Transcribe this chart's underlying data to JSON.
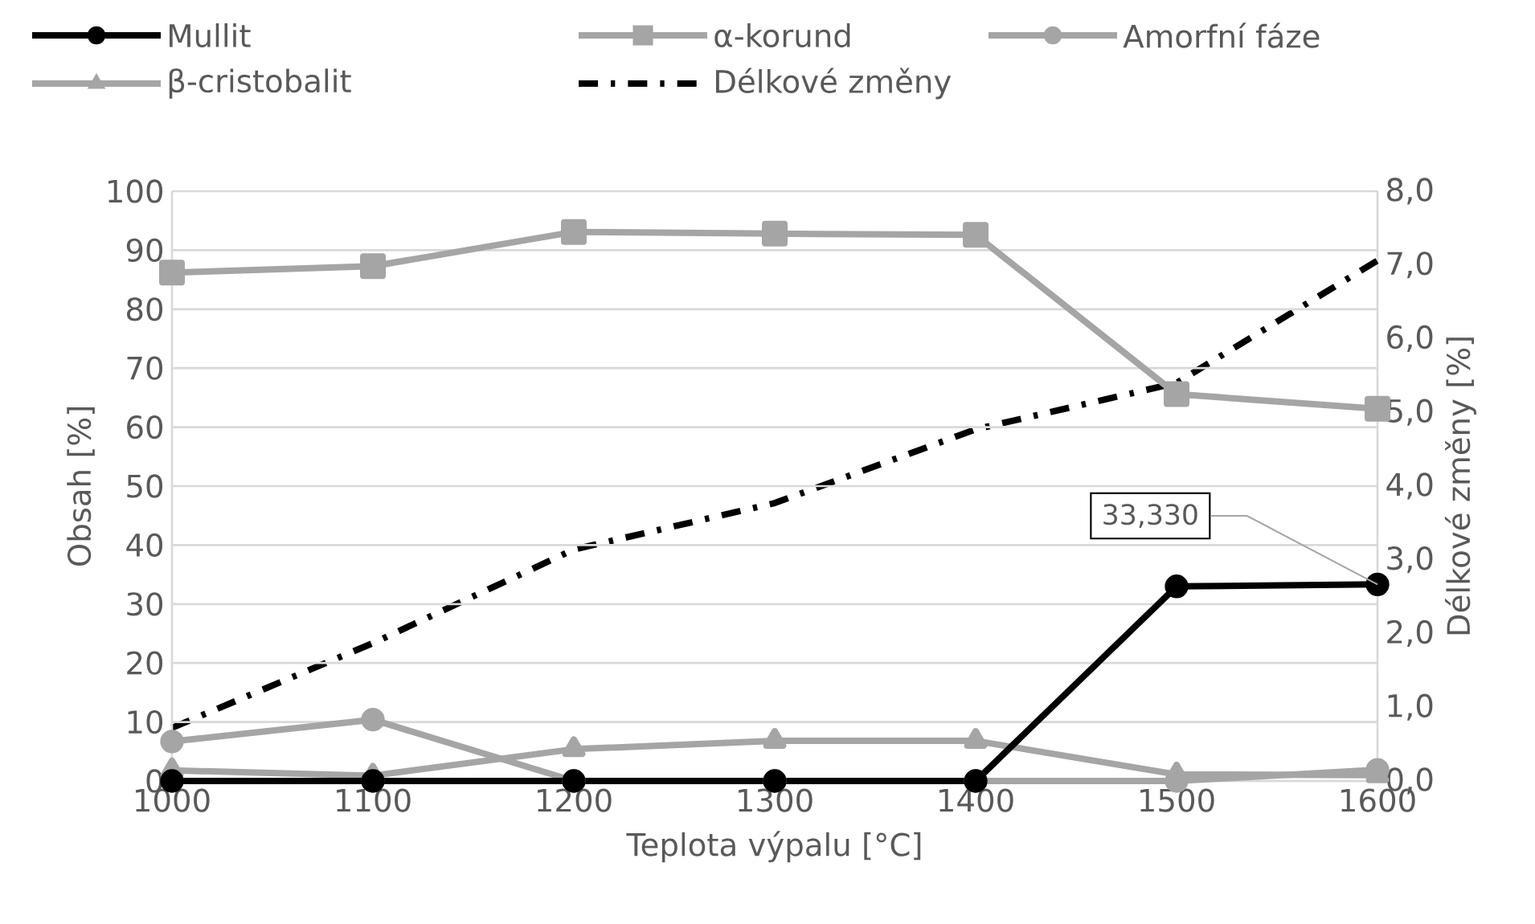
{
  "chart_data": {
    "type": "line",
    "xlabel": "Teplota výpalu [°C]",
    "ylabel": "Obsah [%]",
    "y2label": "Délkové změny [%]",
    "x": [
      1000,
      1100,
      1200,
      1300,
      1400,
      1500,
      1600
    ],
    "series": [
      {
        "name": "Mullit",
        "color": "#000000",
        "marker": "circle",
        "values": [
          0,
          0,
          0,
          0,
          0,
          33,
          33.33
        ]
      },
      {
        "name": "α-korund",
        "color": "#a5a5a5",
        "marker": "square",
        "values": [
          86.2,
          87.3,
          93.1,
          92.8,
          92.6,
          65.6,
          63.1
        ]
      },
      {
        "name": "Amorfní fáze",
        "color": "#a5a5a5",
        "marker": "circle",
        "values": [
          6.7,
          10.4,
          0,
          0,
          0,
          0,
          1.9
        ]
      },
      {
        "name": "β-cristobalit",
        "color": "#a5a5a5",
        "marker": "triangle",
        "values": [
          1.8,
          0.9,
          5.4,
          6.8,
          6.8,
          1.1,
          1.0
        ]
      },
      {
        "name": "Délkové změny",
        "color": "#000000",
        "marker": "none",
        "line_style": "dashdot",
        "axis": "y2",
        "values": [
          0.72,
          1.87,
          3.14,
          3.77,
          4.77,
          5.4,
          7.06
        ]
      }
    ],
    "xlim": [
      1000,
      1600
    ],
    "xticks": [
      1000,
      1100,
      1200,
      1300,
      1400,
      1500,
      1600
    ],
    "ylim": [
      0,
      100
    ],
    "yticks": [
      0,
      10,
      20,
      30,
      40,
      50,
      60,
      70,
      80,
      90,
      100
    ],
    "y2lim": [
      0,
      8
    ],
    "y2ticks": [
      {
        "value": 0,
        "label": "0,0"
      },
      {
        "value": 1,
        "label": "1,0"
      },
      {
        "value": 2,
        "label": "2,0"
      },
      {
        "value": 3,
        "label": "3,0"
      },
      {
        "value": 4,
        "label": "4,0"
      },
      {
        "value": 5,
        "label": "5,0"
      },
      {
        "value": 6,
        "label": "6,0"
      },
      {
        "value": 7,
        "label": "7,0"
      },
      {
        "value": 8,
        "label": "8,0"
      }
    ],
    "annotations": [
      {
        "text": "33,330",
        "x": 1600,
        "y": 33.33
      }
    ],
    "grid": "y",
    "legend": "top"
  }
}
